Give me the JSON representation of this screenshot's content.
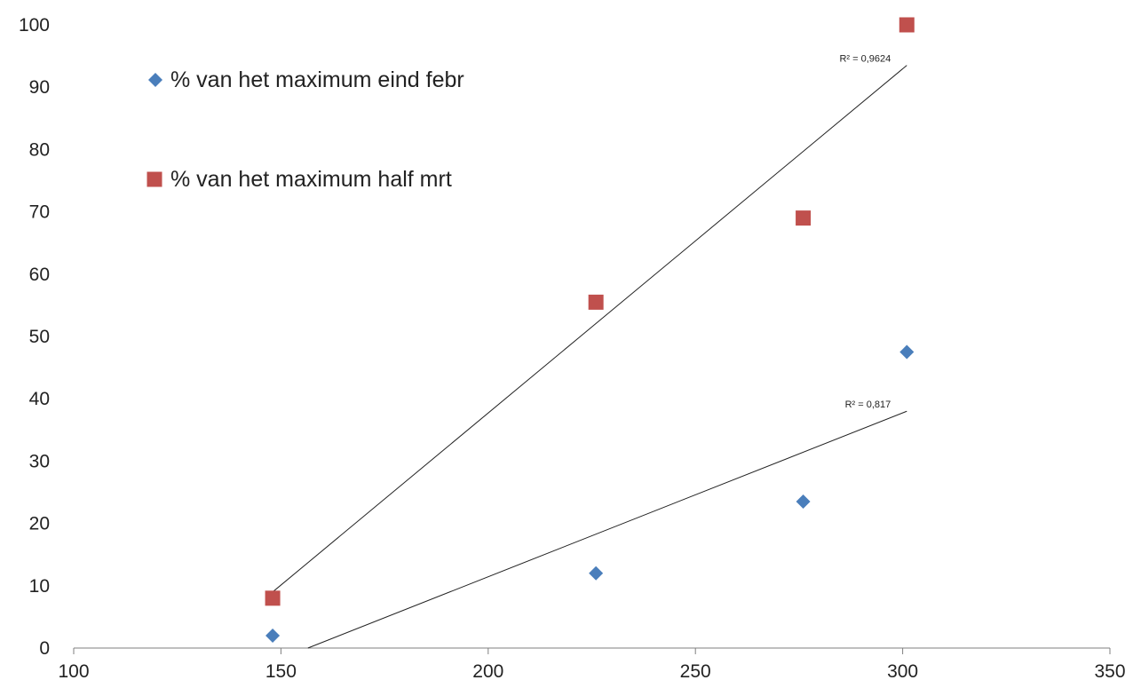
{
  "chart_data": {
    "type": "scatter",
    "title": "",
    "xlabel": "",
    "ylabel": "",
    "xlim": [
      100,
      350
    ],
    "ylim": [
      0,
      100
    ],
    "x_ticks": [
      "100",
      "150",
      "200",
      "250",
      "300",
      "350"
    ],
    "y_ticks": [
      "0",
      "10",
      "20",
      "30",
      "40",
      "50",
      "60",
      "70",
      "80",
      "90",
      "100"
    ],
    "grid": false,
    "legend": "top-left, inside plot",
    "series": [
      {
        "name": "% van het maximum eind febr",
        "marker": "diamond",
        "color": "#4a7ebb",
        "x": [
          148,
          226,
          276,
          301
        ],
        "y": [
          2,
          12,
          23.5,
          47.5
        ],
        "trendline": {
          "type": "linear",
          "x": [
            156.5,
            301
          ],
          "y": [
            0,
            38
          ],
          "r_squared_label": "R² = 0,817"
        }
      },
      {
        "name": "% van het maximum half mrt",
        "marker": "square",
        "color": "#c0504d",
        "x": [
          148,
          226,
          276,
          301
        ],
        "y": [
          8,
          55.5,
          69,
          100
        ],
        "trendline": {
          "type": "linear",
          "x": [
            148,
            301
          ],
          "y": [
            9,
            93.5
          ],
          "r_squared_label": "R² = 0,9624"
        }
      }
    ]
  }
}
